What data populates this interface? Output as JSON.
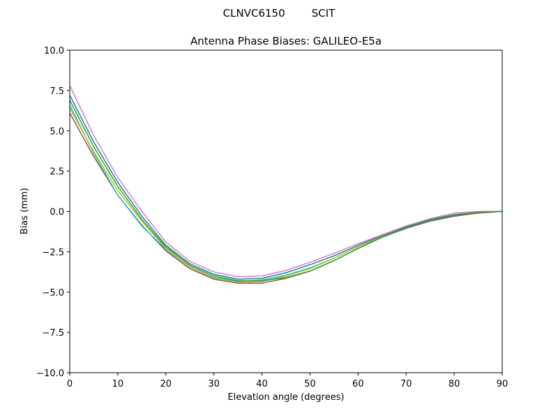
{
  "chart_data": {
    "type": "line",
    "suptitle": "CLNVC6150        SCIT",
    "title": "Antenna Phase Biases: GALILEO-E5a",
    "xlabel": "Elevation angle (degrees)",
    "ylabel": "Bias (mm)",
    "x": [
      0,
      5,
      10,
      15,
      20,
      25,
      30,
      35,
      40,
      45,
      50,
      55,
      60,
      65,
      70,
      75,
      80,
      85,
      90
    ],
    "xlim": [
      0,
      90
    ],
    "xticks": [
      0,
      10,
      20,
      30,
      40,
      50,
      60,
      70,
      80,
      90
    ],
    "ylim": [
      -10,
      10
    ],
    "yticks": [
      {
        "value": -10,
        "label": "−10.0"
      },
      {
        "value": -7.5,
        "label": "−7.5"
      },
      {
        "value": -5,
        "label": "−5.0"
      },
      {
        "value": -2.5,
        "label": "−2.5"
      },
      {
        "value": 0,
        "label": "0.0"
      },
      {
        "value": 2.5,
        "label": "2.5"
      },
      {
        "value": 5,
        "label": "5.0"
      },
      {
        "value": 7.5,
        "label": "7.5"
      },
      {
        "value": 10,
        "label": "10.0"
      }
    ],
    "series": [
      {
        "color": "#8c564b",
        "values": [
          6.1,
          3.4,
          1.0,
          -0.85,
          -2.45,
          -3.55,
          -4.2,
          -4.45,
          -4.45,
          -4.15,
          -3.7,
          -3.05,
          -2.3,
          -1.6,
          -1.05,
          -0.6,
          -0.3,
          -0.1,
          0
        ]
      },
      {
        "color": "#17becf",
        "values": [
          6.6,
          3.6,
          1.0,
          -0.9,
          -2.35,
          -3.45,
          -4.1,
          -4.35,
          -4.25,
          -3.95,
          -3.5,
          -2.9,
          -2.2,
          -1.55,
          -1.0,
          -0.55,
          -0.25,
          -0.05,
          0
        ]
      },
      {
        "color": "#bcbd22",
        "values": [
          6.4,
          3.7,
          1.3,
          -0.6,
          -2.3,
          -3.45,
          -4.15,
          -4.4,
          -4.35,
          -4.0,
          -3.55,
          -2.9,
          -2.2,
          -1.55,
          -1.0,
          -0.55,
          -0.25,
          -0.05,
          0
        ]
      },
      {
        "color": "#1f77b4",
        "values": [
          7.2,
          4.3,
          1.8,
          -0.3,
          -2.1,
          -3.25,
          -3.9,
          -4.2,
          -4.15,
          -3.8,
          -3.3,
          -2.75,
          -2.1,
          -1.5,
          -0.95,
          -0.5,
          -0.2,
          -0.05,
          0
        ]
      },
      {
        "color": "#e377c2",
        "values": [
          7.8,
          4.7,
          2.1,
          0.0,
          -1.9,
          -3.1,
          -3.75,
          -4.05,
          -4.0,
          -3.65,
          -3.15,
          -2.6,
          -2.0,
          -1.45,
          -0.9,
          -0.45,
          -0.1,
          0.0,
          0
        ]
      },
      {
        "color": "#2ca02c",
        "values": [
          6.9,
          4.0,
          1.55,
          -0.5,
          -2.2,
          -3.35,
          -4.0,
          -4.3,
          -4.3,
          -4.1,
          -3.7,
          -3.05,
          -2.3,
          -1.6,
          -1.0,
          -0.55,
          -0.25,
          -0.05,
          0
        ]
      }
    ]
  }
}
